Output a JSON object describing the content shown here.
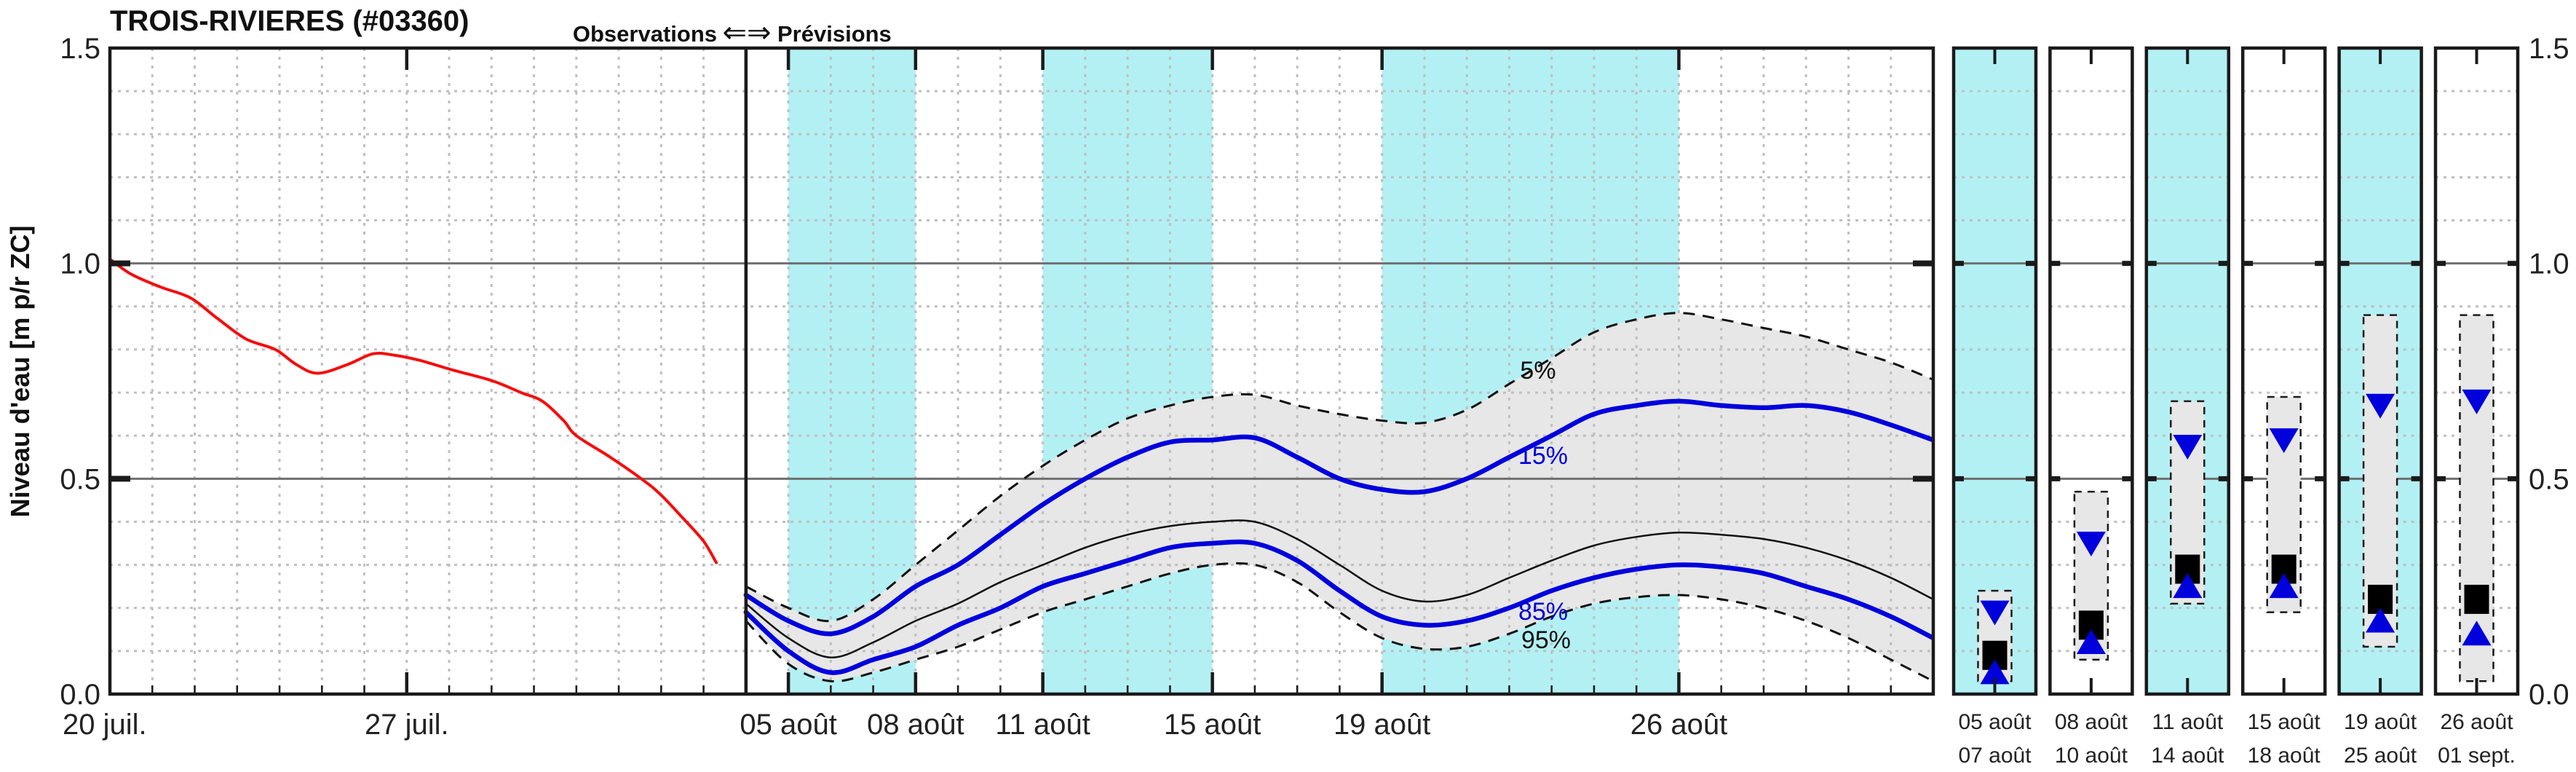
{
  "title": "TROIS-RIVIERES (#03360)",
  "y_axis": {
    "label": "Niveau d'eau [m p/r ZC]",
    "tick_values": [
      0.0,
      0.5,
      1.0,
      1.5
    ],
    "tick_labels": [
      "0.0",
      "0.5",
      "1.0",
      "1.5"
    ],
    "range": [
      0.0,
      1.5
    ]
  },
  "right_axis": {
    "tick_values": [
      0.0,
      0.5,
      1.0,
      1.5
    ],
    "tick_labels": [
      "0.0",
      "0.5",
      "1.0",
      "1.5"
    ]
  },
  "header": {
    "observations": "Observations",
    "arrow": "⇐⇒",
    "previsions": "Prévisions"
  },
  "percentile_labels": {
    "p5": "5%",
    "p15": "15%",
    "p85": "85%",
    "p95": "95%"
  },
  "colors": {
    "observed": "#f50d0d",
    "percentile_blue": "#0000dd",
    "median_black": "#111111",
    "dashed_black": "#111111",
    "band_cyan": "#b3f0f4",
    "area_gray": "#e7e7e7",
    "grid_dot": "#bfbfbf",
    "solid_gray_line": "#6f6f6f",
    "axis": "#1a1a1a"
  },
  "chart_data": {
    "type": "line",
    "title": "TROIS-RIVIERES (#03360)",
    "ylabel": "Niveau d'eau [m p/r ZC]",
    "ylim": [
      0.0,
      1.5
    ],
    "x_unit": "days since 20 juil.",
    "x_ticks": [
      {
        "label": "20 juil.",
        "day": 0
      },
      {
        "label": "27 juil.",
        "day": 7
      },
      {
        "label": "05 août",
        "day": 16
      },
      {
        "label": "08 août",
        "day": 19
      },
      {
        "label": "11 août",
        "day": 22
      },
      {
        "label": "15 août",
        "day": 26
      },
      {
        "label": "19 août",
        "day": 30
      },
      {
        "label": "26 août",
        "day": 37
      }
    ],
    "forecast_start_day": 15,
    "observed": {
      "name": "Observations",
      "days": [
        0,
        0.5,
        1.2,
        1.9,
        2.5,
        3.2,
        3.9,
        4.4,
        4.9,
        5.6,
        6.2,
        6.7,
        7.3,
        8.1,
        9.0,
        9.7,
        10.2,
        10.7,
        11.0,
        11.8,
        12.6,
        13.0,
        13.5,
        14.0,
        14.3
      ],
      "values": [
        1.01,
        0.975,
        0.945,
        0.92,
        0.875,
        0.825,
        0.8,
        0.765,
        0.745,
        0.765,
        0.79,
        0.787,
        0.775,
        0.752,
        0.728,
        0.7,
        0.68,
        0.635,
        0.6,
        0.55,
        0.495,
        0.462,
        0.41,
        0.355,
        0.305
      ]
    },
    "forecast_days": [
      15,
      16,
      17,
      18,
      19,
      20,
      21,
      22,
      23,
      24,
      25,
      26,
      27,
      28,
      29,
      30,
      31,
      32,
      33,
      34,
      35,
      36,
      37,
      38,
      39,
      40,
      41,
      42,
      43
    ],
    "forecast_series": [
      {
        "name": "5%",
        "style": "dashed-black",
        "values": [
          0.25,
          0.2,
          0.17,
          0.22,
          0.3,
          0.38,
          0.46,
          0.53,
          0.59,
          0.64,
          0.67,
          0.69,
          0.695,
          0.67,
          0.65,
          0.635,
          0.63,
          0.66,
          0.72,
          0.78,
          0.84,
          0.87,
          0.885,
          0.87,
          0.85,
          0.83,
          0.8,
          0.77,
          0.73
        ]
      },
      {
        "name": "15%",
        "style": "blue",
        "values": [
          0.23,
          0.17,
          0.14,
          0.18,
          0.25,
          0.3,
          0.37,
          0.44,
          0.5,
          0.55,
          0.585,
          0.59,
          0.595,
          0.55,
          0.5,
          0.475,
          0.47,
          0.5,
          0.55,
          0.6,
          0.65,
          0.67,
          0.68,
          0.67,
          0.665,
          0.67,
          0.655,
          0.625,
          0.59
        ]
      },
      {
        "name": "50%",
        "style": "thin-black",
        "values": [
          0.21,
          0.13,
          0.085,
          0.12,
          0.17,
          0.21,
          0.26,
          0.3,
          0.34,
          0.37,
          0.39,
          0.4,
          0.4,
          0.36,
          0.3,
          0.24,
          0.215,
          0.23,
          0.27,
          0.31,
          0.345,
          0.365,
          0.375,
          0.37,
          0.36,
          0.34,
          0.31,
          0.27,
          0.22
        ]
      },
      {
        "name": "85%",
        "style": "blue",
        "values": [
          0.19,
          0.1,
          0.05,
          0.08,
          0.11,
          0.16,
          0.2,
          0.25,
          0.28,
          0.31,
          0.34,
          0.35,
          0.35,
          0.31,
          0.24,
          0.18,
          0.16,
          0.17,
          0.2,
          0.24,
          0.27,
          0.29,
          0.3,
          0.295,
          0.28,
          0.25,
          0.22,
          0.18,
          0.13
        ]
      },
      {
        "name": "95%",
        "style": "dashed-black",
        "values": [
          0.17,
          0.07,
          0.03,
          0.05,
          0.08,
          0.11,
          0.15,
          0.19,
          0.22,
          0.25,
          0.28,
          0.3,
          0.3,
          0.26,
          0.19,
          0.13,
          0.105,
          0.11,
          0.14,
          0.18,
          0.21,
          0.225,
          0.23,
          0.22,
          0.2,
          0.17,
          0.13,
          0.08,
          0.03
        ]
      }
    ],
    "shaded_periods": [
      {
        "from_day": 16,
        "to_day": 19
      },
      {
        "from_day": 22,
        "to_day": 26
      },
      {
        "from_day": 30,
        "to_day": 37
      }
    ],
    "mini_panels": [
      {
        "start_label": "05 août",
        "end_label": "07 août",
        "background": "cyan",
        "p5": 0.24,
        "p15": 0.19,
        "median": 0.09,
        "p85": 0.05,
        "p95": 0.03
      },
      {
        "start_label": "08 août",
        "end_label": "10 août",
        "background": "white",
        "p5": 0.47,
        "p15": 0.35,
        "median": 0.16,
        "p85": 0.12,
        "p95": 0.08
      },
      {
        "start_label": "11 août",
        "end_label": "14 août",
        "background": "cyan",
        "p5": 0.68,
        "p15": 0.575,
        "median": 0.29,
        "p85": 0.25,
        "p95": 0.21
      },
      {
        "start_label": "15 août",
        "end_label": "18 août",
        "background": "white",
        "p5": 0.69,
        "p15": 0.59,
        "median": 0.29,
        "p85": 0.25,
        "p95": 0.19
      },
      {
        "start_label": "19 août",
        "end_label": "25 août",
        "background": "cyan",
        "p5": 0.88,
        "p15": 0.67,
        "median": 0.22,
        "p85": 0.17,
        "p95": 0.11
      },
      {
        "start_label": "26 août",
        "end_label": "01 sept.",
        "background": "white",
        "p5": 0.88,
        "p15": 0.68,
        "median": 0.22,
        "p85": 0.14,
        "p95": 0.03
      }
    ]
  }
}
